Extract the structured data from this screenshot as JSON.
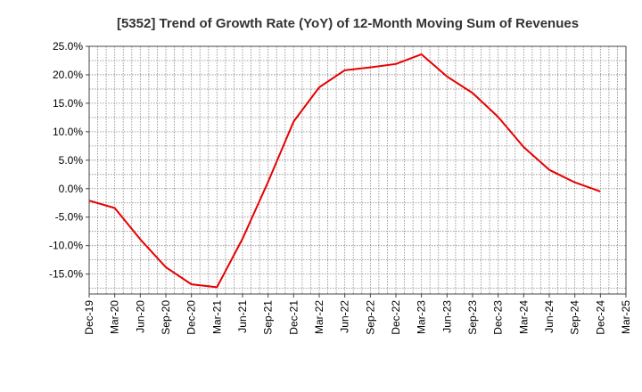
{
  "chart_data": {
    "type": "line",
    "title": "[5352]  Trend of Growth Rate (YoY) of 12-Month Moving Sum of Revenues",
    "xlabel": "",
    "ylabel": "",
    "ylim": [
      -18.5,
      25
    ],
    "y_ticks": [
      25,
      20,
      15,
      10,
      5,
      0,
      -5,
      -10,
      -15
    ],
    "y_tick_labels": [
      "25.0%",
      "20.0%",
      "15.0%",
      "10.0%",
      "5.0%",
      "0.0%",
      "-5.0%",
      "-10.0%",
      "-15.0%"
    ],
    "x_tick_labels": [
      "Dec-19",
      "Mar-20",
      "Jun-20",
      "Sep-20",
      "Dec-20",
      "Mar-21",
      "Jun-21",
      "Sep-21",
      "Dec-21",
      "Mar-22",
      "Jun-22",
      "Sep-22",
      "Dec-22",
      "Mar-23",
      "Jun-23",
      "Sep-23",
      "Dec-23",
      "Mar-24",
      "Jun-24",
      "Sep-24",
      "Dec-24",
      "Mar-25"
    ],
    "grid": true,
    "line_color": "#e60000",
    "series": [
      {
        "x": [
          "Dec-19",
          "Mar-20",
          "Jun-20",
          "Sep-20",
          "Dec-20",
          "Mar-21",
          "Jun-21",
          "Sep-21",
          "Dec-21",
          "Mar-22",
          "Jun-22",
          "Sep-22",
          "Dec-22",
          "Mar-23",
          "Jun-23",
          "Sep-23",
          "Dec-23",
          "Mar-24",
          "Jun-24",
          "Sep-24",
          "Dec-24"
        ],
        "values": [
          -2.1,
          -3.4,
          -8.9,
          -13.8,
          -16.8,
          -17.3,
          -8.8,
          1.2,
          11.8,
          17.8,
          20.8,
          21.3,
          21.9,
          23.6,
          19.7,
          16.8,
          12.6,
          7.3,
          3.3,
          1.1,
          -0.5
        ]
      }
    ]
  }
}
